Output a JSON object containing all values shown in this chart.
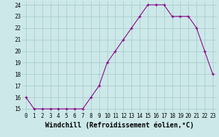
{
  "x": [
    0,
    1,
    2,
    3,
    4,
    5,
    6,
    7,
    8,
    9,
    10,
    11,
    12,
    13,
    14,
    15,
    16,
    17,
    18,
    19,
    20,
    21,
    22,
    23
  ],
  "y": [
    16,
    15,
    15,
    15,
    15,
    15,
    15,
    15,
    16,
    17,
    19,
    20,
    21,
    22,
    23,
    24,
    24,
    24,
    23,
    23,
    23,
    22,
    20,
    18
  ],
  "ylim": [
    14.7,
    24.3
  ],
  "xlim": [
    -0.5,
    23.5
  ],
  "yticks": [
    15,
    16,
    17,
    18,
    19,
    20,
    21,
    22,
    23,
    24
  ],
  "xticks": [
    0,
    1,
    2,
    3,
    4,
    5,
    6,
    7,
    8,
    9,
    10,
    11,
    12,
    13,
    14,
    15,
    16,
    17,
    18,
    19,
    20,
    21,
    22,
    23
  ],
  "xlabel": "Windchill (Refroidissement éolien,°C)",
  "line_color": "#880088",
  "marker": "+",
  "bg_color": "#cce8e8",
  "grid_color": "#aacccc",
  "tick_fontsize": 5.5,
  "xlabel_fontsize": 7
}
